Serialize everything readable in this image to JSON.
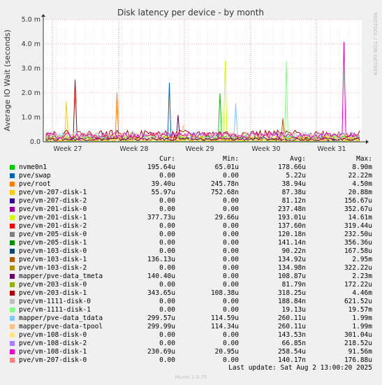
{
  "chart_data": {
    "type": "line",
    "title": "Disk latency per device - by month",
    "ylabel": "Average IO Wait (seconds)",
    "side_label": "RRDTOOL / TOBI OETIKER",
    "yticks": [
      "0.0",
      "1.0 m",
      "2.0 m",
      "3.0 m",
      "4.0 m",
      "5.0 m"
    ],
    "ylim": [
      0,
      0.005
    ],
    "xticks": [
      "Week 27",
      "Week 28",
      "Week 29",
      "Week 30",
      "Week 31"
    ],
    "grid": true,
    "legend_position": "bottom",
    "columns": [
      "Cur:",
      "Min:",
      "Avg:",
      "Max:"
    ],
    "series": [
      {
        "name": "nvme0n1",
        "color": "#00cc00",
        "cur": "195.64u",
        "min": "65.01u",
        "avg": "178.66u",
        "max": "8.90m"
      },
      {
        "name": "pve/swap",
        "color": "#0066b3",
        "cur": "0.00",
        "min": "0.00",
        "avg": "5.22u",
        "max": "22.22m"
      },
      {
        "name": "pve/root",
        "color": "#ff8000",
        "cur": "39.40u",
        "min": "245.78n",
        "avg": "38.94u",
        "max": "4.50m"
      },
      {
        "name": "pve/vm-207-disk-1",
        "color": "#ffcc00",
        "cur": "55.97u",
        "min": "752.68n",
        "avg": "87.38u",
        "max": "20.88m"
      },
      {
        "name": "pve/vm-207-disk-2",
        "color": "#330099",
        "cur": "0.00",
        "min": "0.00",
        "avg": "81.12n",
        "max": "156.67u"
      },
      {
        "name": "pve/vm-201-disk-0",
        "color": "#990099",
        "cur": "0.00",
        "min": "0.00",
        "avg": "237.48n",
        "max": "352.67u"
      },
      {
        "name": "pve/vm-201-disk-1",
        "color": "#ccff00",
        "cur": "377.73u",
        "min": "29.66u",
        "avg": "193.01u",
        "max": "14.61m"
      },
      {
        "name": "pve/vm-201-disk-2",
        "color": "#ff0000",
        "cur": "0.00",
        "min": "0.00",
        "avg": "137.60n",
        "max": "319.44u"
      },
      {
        "name": "pve/vm-205-disk-0",
        "color": "#808080",
        "cur": "0.00",
        "min": "0.00",
        "avg": "120.18n",
        "max": "232.50u"
      },
      {
        "name": "pve/vm-205-disk-1",
        "color": "#008f00",
        "cur": "0.00",
        "min": "0.00",
        "avg": "141.14n",
        "max": "356.36u"
      },
      {
        "name": "pve/vm-103-disk-0",
        "color": "#00487d",
        "cur": "0.00",
        "min": "0.00",
        "avg": "90.22n",
        "max": "167.58u"
      },
      {
        "name": "pve/vm-103-disk-1",
        "color": "#b35a00",
        "cur": "136.13u",
        "min": "0.00",
        "avg": "134.92u",
        "max": "2.95m"
      },
      {
        "name": "pve/vm-103-disk-2",
        "color": "#b38f00",
        "cur": "0.00",
        "min": "0.00",
        "avg": "134.98n",
        "max": "322.22u"
      },
      {
        "name": "mapper/pve-data_tmeta",
        "color": "#6b006b",
        "cur": "140.40u",
        "min": "0.00",
        "avg": "108.87u",
        "max": "2.23m"
      },
      {
        "name": "pve/vm-203-disk-0",
        "color": "#8fb300",
        "cur": "0.00",
        "min": "0.00",
        "avg": "81.79n",
        "max": "172.22u"
      },
      {
        "name": "pve/vm-203-disk-1",
        "color": "#b30000",
        "cur": "343.65u",
        "min": "108.38u",
        "avg": "318.25u",
        "max": "4.46m"
      },
      {
        "name": "pve/vm-1111-disk-0",
        "color": "#bebebe",
        "cur": "0.00",
        "min": "0.00",
        "avg": "188.84n",
        "max": "621.52u"
      },
      {
        "name": "pve/vm-1111-disk-1",
        "color": "#80ff80",
        "cur": "0.00",
        "min": "0.00",
        "avg": "19.13u",
        "max": "19.57m"
      },
      {
        "name": "mapper/pve-data_tdata",
        "color": "#80c9ff",
        "cur": "299.57u",
        "min": "114.59u",
        "avg": "260.11u",
        "max": "1.99m"
      },
      {
        "name": "mapper/pve-data-tpool",
        "color": "#ffc080",
        "cur": "299.99u",
        "min": "114.34u",
        "avg": "260.11u",
        "max": "1.99m"
      },
      {
        "name": "pve/vm-108-disk-0",
        "color": "#ffe680",
        "cur": "0.00",
        "min": "0.00",
        "avg": "143.53n",
        "max": "301.04u"
      },
      {
        "name": "pve/vm-108-disk-2",
        "color": "#aa80ff",
        "cur": "0.00",
        "min": "0.00",
        "avg": "66.85n",
        "max": "218.52u"
      },
      {
        "name": "pve/vm-108-disk-1",
        "color": "#ee00cc",
        "cur": "230.69u",
        "min": "20.95u",
        "avg": "258.54u",
        "max": "91.56m"
      },
      {
        "name": "pve/vm-207-disk-0",
        "color": "#ff8080",
        "cur": "0.00",
        "min": "0.00",
        "avg": "140.17n",
        "max": "176.88u"
      }
    ]
  },
  "footer": {
    "last_update": "Last update: Sat Aug  2 13:00:20 2025",
    "version": "Munin 2.0.75"
  }
}
